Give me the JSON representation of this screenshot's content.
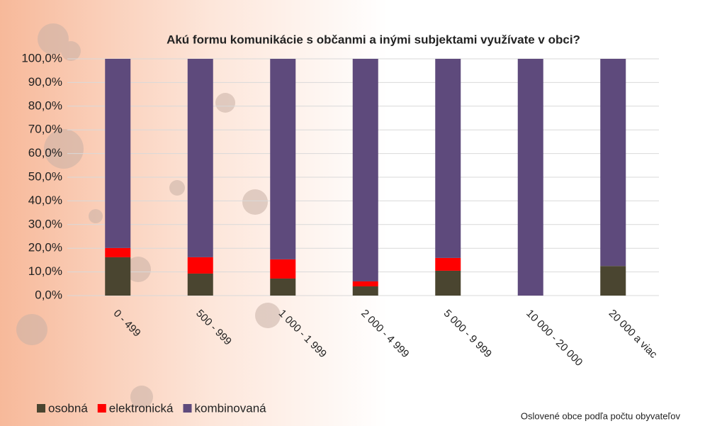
{
  "chart_data": {
    "type": "stacked_bar",
    "title": "Akú formu komunikácie s občanmi a inými subjektami využívate v obci?",
    "x_label": "Oslovené obce podľa počtu obyvateľov",
    "categories": [
      "0 - 499",
      "500 - 999",
      "1 000 - 1 999",
      "2 000 - 4 999",
      "5 000 - 9 999",
      "10 000 - 20 000",
      "20 000 a viac"
    ],
    "series": [
      {
        "name": "osobná",
        "color": "#4a4530",
        "values": [
          16.2,
          9.3,
          7.2,
          3.9,
          10.5,
          0,
          12.5
        ]
      },
      {
        "name": "elektronická",
        "color": "#ff0000",
        "values": [
          3.9,
          6.9,
          8.1,
          2.1,
          5.4,
          0,
          0
        ]
      },
      {
        "name": "kombinovaná",
        "color": "#5e4a7c",
        "values": [
          79.9,
          83.8,
          84.7,
          94.0,
          84.1,
          100,
          87.5
        ]
      }
    ],
    "ylim": [
      0,
      100
    ],
    "yticks": [
      {
        "value": 0,
        "label": "0,0%"
      },
      {
        "value": 10,
        "label": "10,0%"
      },
      {
        "value": 20,
        "label": "20,0%"
      },
      {
        "value": 30,
        "label": "30,0%"
      },
      {
        "value": 40,
        "label": "40,0%"
      },
      {
        "value": 50,
        "label": "50,0%"
      },
      {
        "value": 60,
        "label": "60,0%"
      },
      {
        "value": 70,
        "label": "70,0%"
      },
      {
        "value": 80,
        "label": "80,0%"
      },
      {
        "value": 90,
        "label": "90,0%"
      },
      {
        "value": 100,
        "label": "100,0%"
      }
    ],
    "grid": true,
    "legend": "bottom-left"
  }
}
